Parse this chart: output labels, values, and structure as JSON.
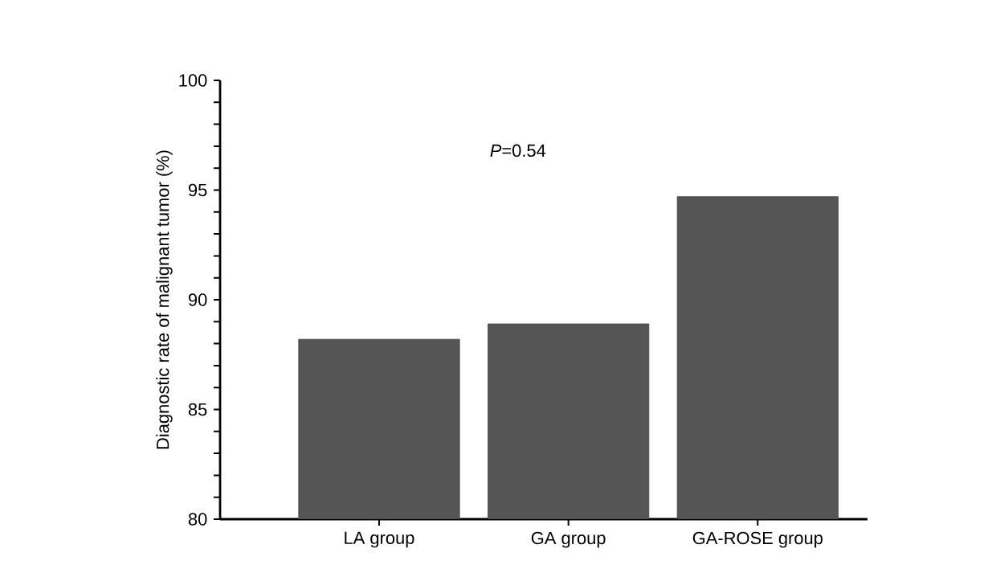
{
  "chart_data": {
    "type": "bar",
    "ylabel": "Diagnostic rate of malignant tumor (%)",
    "categories": [
      "LA group",
      "GA group",
      "GA-ROSE group"
    ],
    "values": [
      88.2,
      88.9,
      94.7
    ],
    "color": "#555555",
    "ylim": [
      80,
      100
    ],
    "yticks": [
      80,
      {
        "value": 81,
        "label": null
      },
      {
        "value": 82,
        "label": null
      },
      {
        "value": 83,
        "label": null
      },
      {
        "value": 84,
        "label": null
      },
      85,
      {
        "value": 86,
        "label": null
      },
      {
        "value": 87,
        "label": null
      },
      {
        "value": 88,
        "label": null
      },
      {
        "value": 89,
        "label": null
      },
      90,
      {
        "value": 91,
        "label": null
      },
      {
        "value": 92,
        "label": null
      },
      {
        "value": 93,
        "label": null
      },
      {
        "value": 94,
        "label": null
      },
      95,
      {
        "value": 96,
        "label": null
      },
      {
        "value": 97,
        "label": null
      },
      {
        "value": 98,
        "label": null
      },
      {
        "value": 99,
        "label": null
      },
      100
    ],
    "annotations": [
      "*P*=0.54"
    ]
  }
}
